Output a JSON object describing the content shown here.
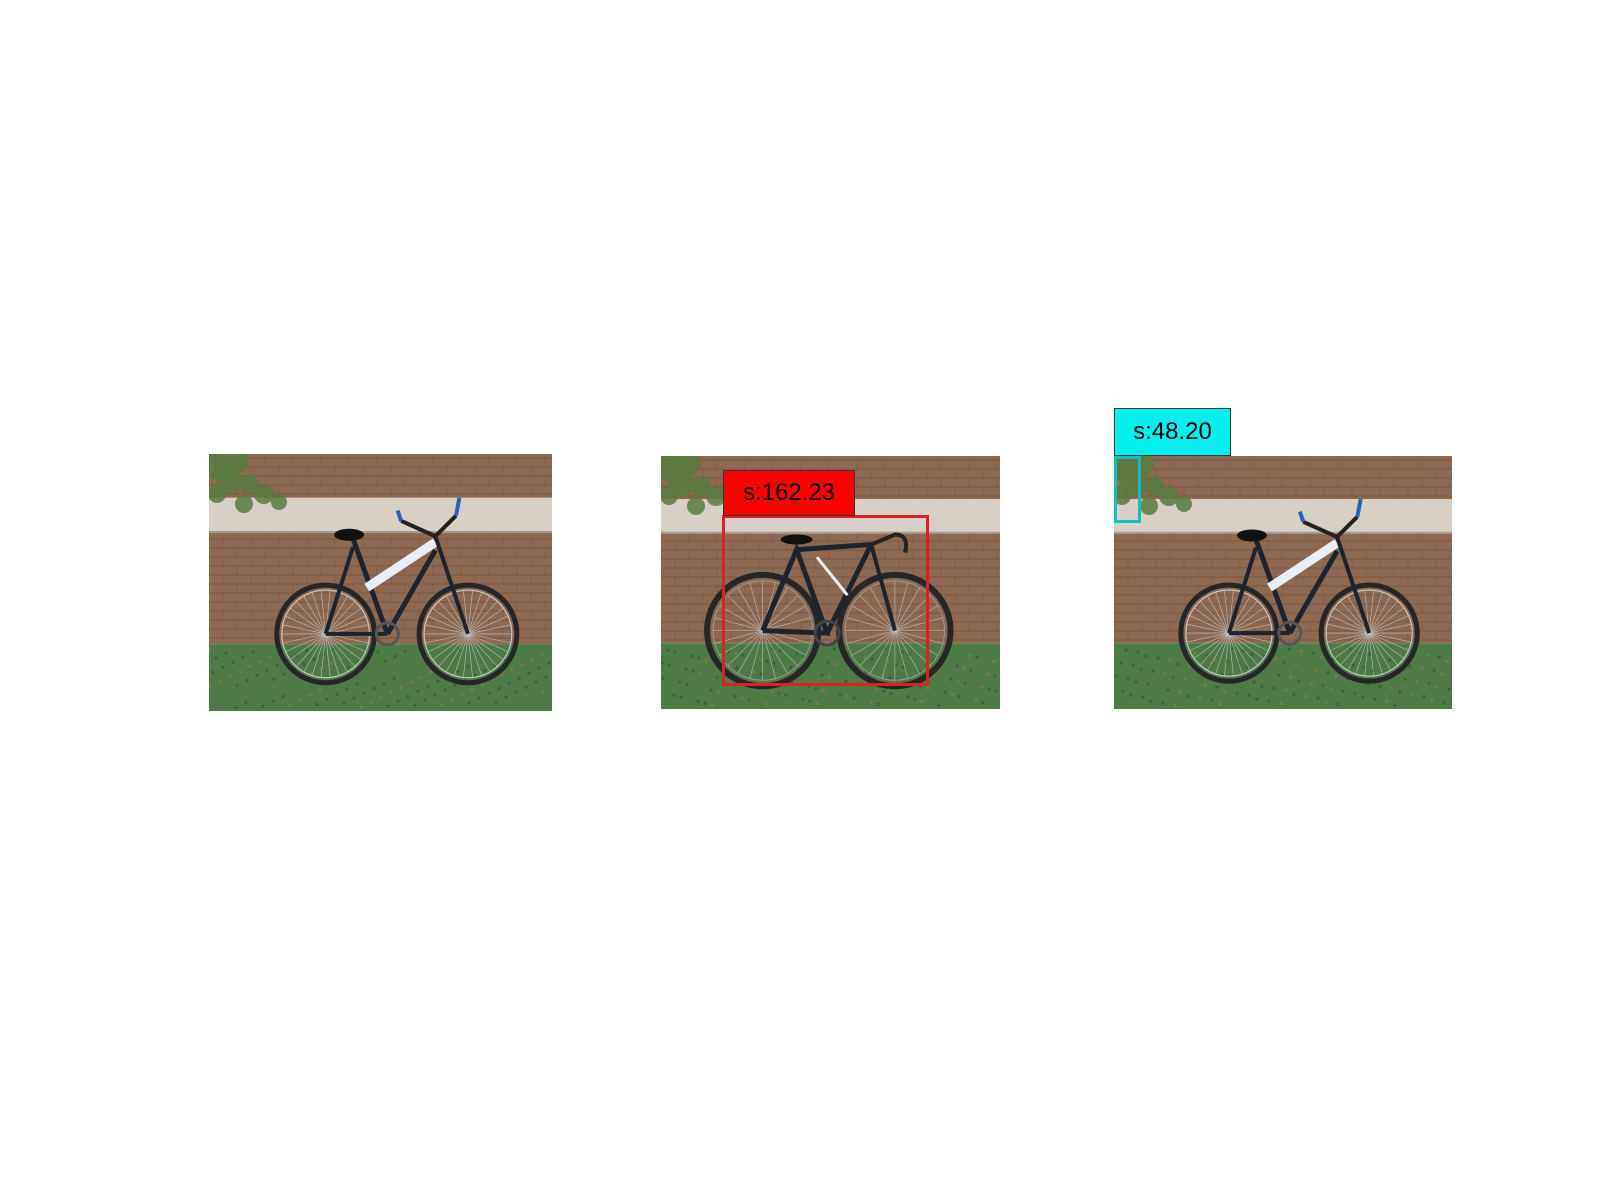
{
  "figure": {
    "panels": [
      {
        "name": "original-image",
        "bike": "mountain",
        "detection": null
      },
      {
        "name": "detection-red",
        "bike": "road",
        "detection": {
          "label": "s:162.23",
          "color": "#ff0000",
          "edge": "#e02020"
        }
      },
      {
        "name": "detection-cyan",
        "bike": "mountain",
        "detection": {
          "label": "s:48.20",
          "color": "#00f0f0",
          "edge": "#10c0c0"
        }
      }
    ]
  },
  "colors": {
    "brick": "#8e6a52",
    "brick_dark": "#6c4d3a",
    "ledge": "#d8d0c6",
    "grass": "#4d7a45",
    "grass_dark": "#375e33",
    "foliage": "#5a7a40",
    "frame_white": "#e8eef2",
    "frame_dark": "#1c2430",
    "tire": "#262626"
  }
}
